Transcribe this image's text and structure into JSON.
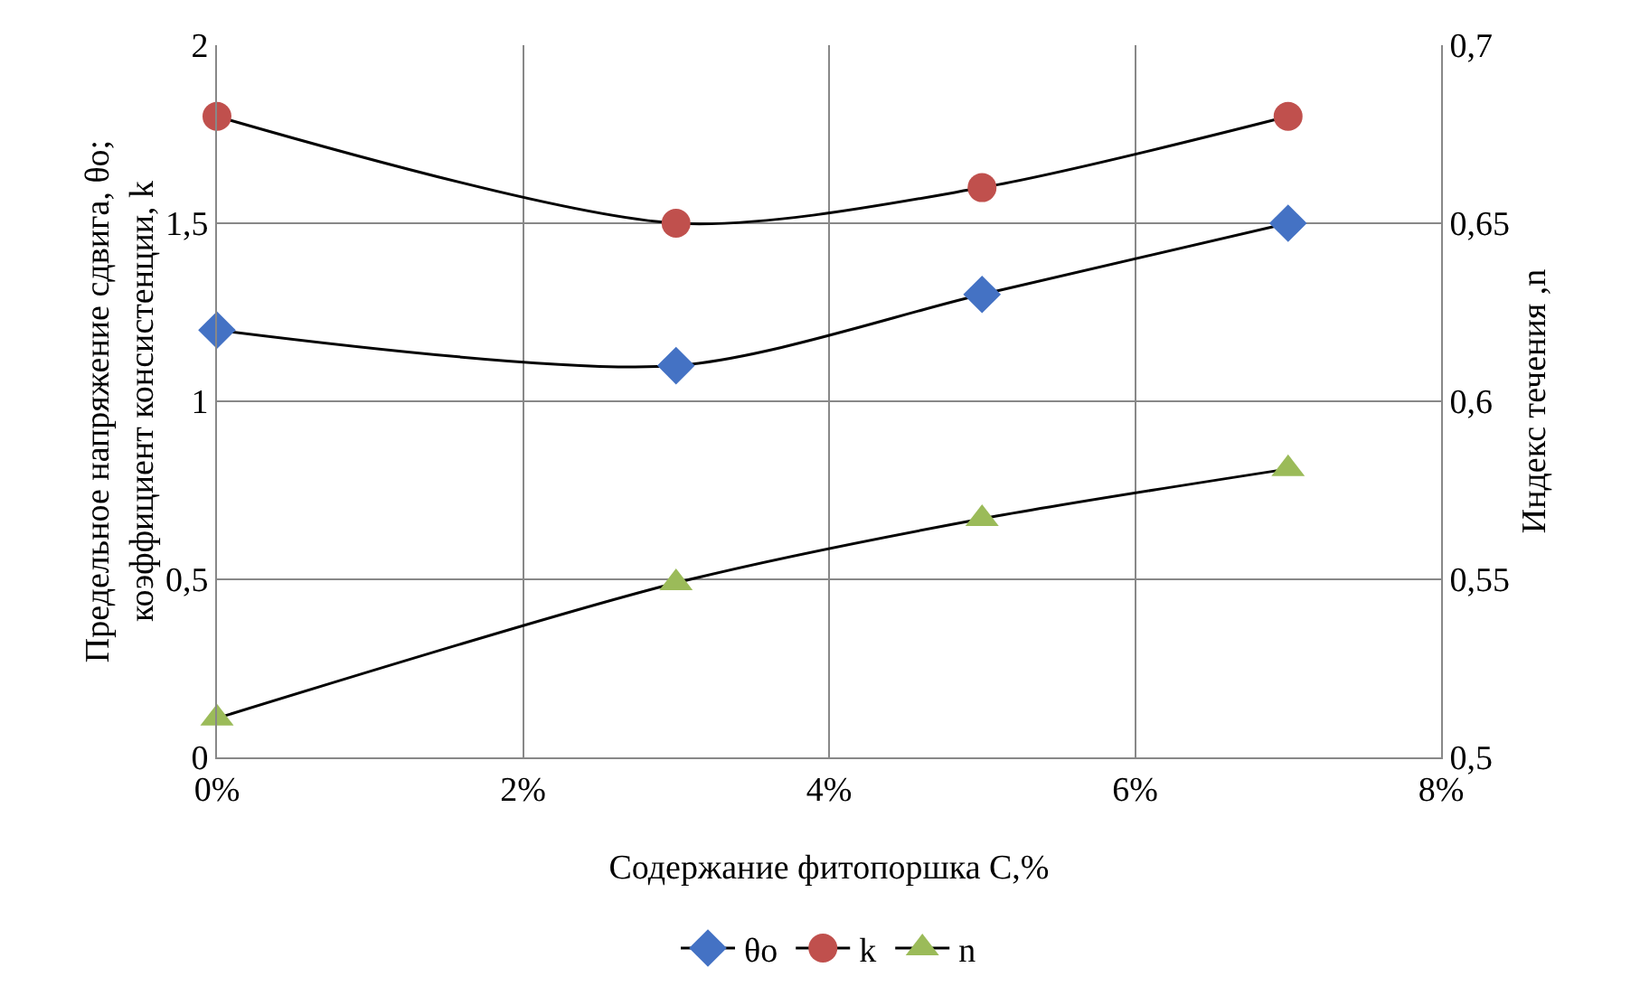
{
  "chart_data": {
    "type": "line",
    "xlabel": "Содержание фитопоршка С,%",
    "ylabel": "Предельное напряжение сдвига, θo;\nкоэффициент консистенции, k",
    "y2label": "Индекс течения ,n",
    "x": [
      0,
      3,
      5,
      7
    ],
    "xlim": [
      0,
      8
    ],
    "xticks": [
      {
        "value": 0,
        "label": "0%"
      },
      {
        "value": 2,
        "label": "2%"
      },
      {
        "value": 4,
        "label": "4%"
      },
      {
        "value": 6,
        "label": "6%"
      },
      {
        "value": 8,
        "label": "8%"
      }
    ],
    "ylim": [
      0,
      2
    ],
    "yticks": [
      0,
      {
        "value": 0.5,
        "label": "0,5"
      },
      1,
      {
        "value": 1.5,
        "label": "1,5"
      },
      2
    ],
    "y2lim": [
      0.5,
      0.7
    ],
    "y2ticks": [
      {
        "value": 0.5,
        "label": "0,5"
      },
      {
        "value": 0.55,
        "label": "0,55"
      },
      {
        "value": 0.6,
        "label": "0,6"
      },
      {
        "value": 0.65,
        "label": "0,65"
      },
      {
        "value": 0.7,
        "label": "0,7"
      }
    ],
    "series": [
      {
        "name": "θo",
        "color": "#4472c4",
        "marker": "diamond",
        "values": [
          1.2,
          1.1,
          1.3,
          1.5
        ]
      },
      {
        "name": "k",
        "color": "#c0504d",
        "marker": "circle",
        "values": [
          1.8,
          1.5,
          1.6,
          1.8
        ]
      },
      {
        "name": "n",
        "color": "#9bbb59",
        "marker": "triangle",
        "axis": "y2",
        "values": [
          0.511,
          0.549,
          0.567,
          0.581
        ]
      }
    ],
    "grid": true,
    "legend": "bottom"
  }
}
